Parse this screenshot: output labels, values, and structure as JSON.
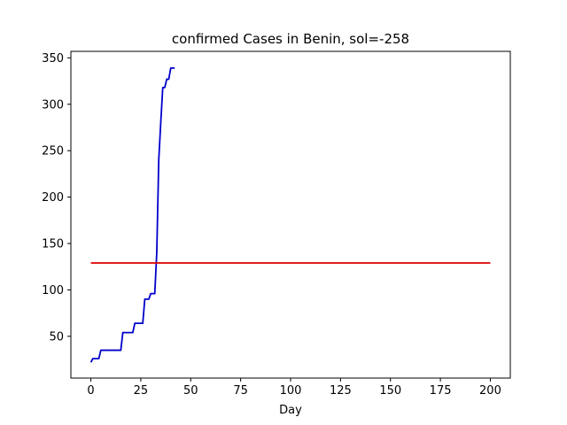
{
  "chart_data": {
    "type": "line",
    "title": "confirmed Cases in Benin, sol=-258",
    "xlabel": "Day",
    "ylabel": "",
    "xlim": [
      -10,
      210
    ],
    "ylim": [
      5,
      357
    ],
    "xticks": [
      0,
      25,
      50,
      75,
      100,
      125,
      150,
      175,
      200
    ],
    "yticks": [
      50,
      100,
      150,
      200,
      250,
      300,
      350
    ],
    "grid": false,
    "series": [
      {
        "color": "#0000cc",
        "x": [
          0,
          1,
          2,
          3,
          4,
          5,
          6,
          7,
          8,
          9,
          10,
          11,
          12,
          13,
          14,
          15,
          16,
          17,
          18,
          19,
          20,
          21,
          22,
          23,
          24,
          25,
          26,
          27,
          28,
          29,
          30,
          31,
          32,
          33,
          34,
          35,
          36,
          37,
          38,
          39,
          40,
          41,
          42
        ],
        "values": [
          22,
          26,
          26,
          26,
          26,
          35,
          35,
          35,
          35,
          35,
          35,
          35,
          35,
          35,
          35,
          35,
          54,
          54,
          54,
          54,
          54,
          54,
          64,
          64,
          64,
          64,
          64,
          90,
          90,
          90,
          96,
          96,
          96,
          140,
          240,
          280,
          318,
          318,
          327,
          327,
          339,
          339,
          339
        ]
      },
      {
        "color": "#dd0000",
        "x": [
          0,
          200
        ],
        "values": [
          129,
          129
        ]
      }
    ]
  }
}
